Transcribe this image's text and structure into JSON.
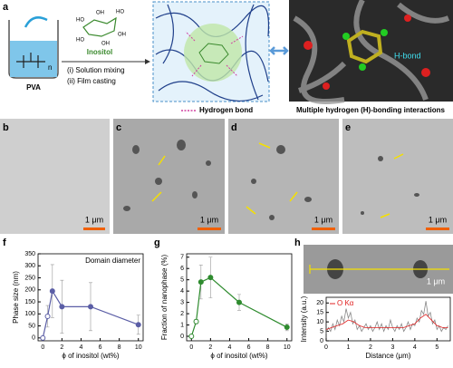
{
  "panel_labels": [
    "a",
    "b",
    "c",
    "d",
    "e",
    "f",
    "g",
    "h"
  ],
  "scheme": {
    "polymer": "PVA",
    "repeat": "n",
    "additive": "Inositol",
    "step1": "(i) Solution mixing",
    "step2": "(ii) Film casting",
    "legend": "Hydrogen bond",
    "hbond": "H-bond",
    "caption": "Multiple hydrogen (H)-bonding interactions",
    "groups": [
      "HO",
      "OH",
      "HO",
      "OH",
      "HO",
      "OH"
    ]
  },
  "scale_bars": [
    "1 μm",
    "1 μm",
    "1 μm",
    "1 μm",
    "1 μm"
  ],
  "chart_data": [
    {
      "type": "line",
      "ylabel": "Phase size (nm)",
      "xlabel": "ϕ of inositol (wt%)",
      "annotation": "Domain diameter",
      "x": [
        0,
        0.5,
        1,
        2,
        5,
        10
      ],
      "series": [
        {
          "color": "#5b5ea6",
          "values": [
            0,
            90,
            195,
            130,
            130,
            55
          ],
          "errors": [
            0,
            45,
            110,
            110,
            100,
            40
          ],
          "filled": [
            false,
            false,
            true,
            true,
            true,
            true
          ]
        }
      ],
      "xlim": [
        -0.5,
        10.5
      ],
      "xticks": [
        0,
        2,
        4,
        6,
        8,
        10
      ],
      "ylim": [
        -12,
        350
      ],
      "yticks": [
        0,
        50,
        100,
        150,
        200,
        250,
        300,
        350
      ]
    },
    {
      "type": "line",
      "ylabel": "Fraction of nanophase (%)",
      "xlabel": "ϕ of inositol (wt%)",
      "x": [
        0,
        0.5,
        1,
        2,
        5,
        10
      ],
      "series": [
        {
          "color": "#2e8b2e",
          "values": [
            0,
            1.3,
            4.8,
            5.2,
            3.0,
            0.8
          ],
          "errors": [
            0,
            0.2,
            1.5,
            1.8,
            0.7,
            0.3
          ],
          "filled": [
            false,
            false,
            true,
            true,
            true,
            true
          ]
        }
      ],
      "xlim": [
        -0.5,
        10.5
      ],
      "xticks": [
        0,
        2,
        4,
        6,
        8,
        10
      ],
      "ylim": [
        -0.4,
        7.3
      ],
      "yticks": [
        0,
        1,
        2,
        3,
        4,
        5,
        6,
        7
      ]
    },
    {
      "type": "line",
      "ylabel": "Intensity (a.u.)",
      "xlabel": "Distance (μm)",
      "series": [
        {
          "color": "#888888",
          "x": [
            0,
            0.1,
            0.2,
            0.3,
            0.4,
            0.5,
            0.6,
            0.7,
            0.8,
            0.9,
            1.0,
            1.1,
            1.2,
            1.3,
            1.4,
            1.5,
            1.6,
            1.7,
            1.8,
            1.9,
            2.0,
            2.1,
            2.2,
            2.3,
            2.4,
            2.5,
            2.6,
            2.7,
            2.8,
            2.9,
            3.0,
            3.1,
            3.2,
            3.3,
            3.4,
            3.5,
            3.6,
            3.7,
            3.8,
            3.9,
            4.0,
            4.1,
            4.2,
            4.3,
            4.4,
            4.5,
            4.6,
            4.7,
            4.8,
            4.9,
            5.0,
            5.1,
            5.2,
            5.3,
            5.4,
            5.5
          ],
          "values": [
            4,
            7,
            5,
            9,
            6,
            11,
            8,
            13,
            10,
            17,
            12,
            15,
            9,
            11,
            6,
            8,
            5,
            7,
            9,
            6,
            8,
            5,
            7,
            10,
            6,
            9,
            5,
            8,
            6,
            11,
            7,
            5,
            8,
            6,
            9,
            5,
            7,
            10,
            6,
            9,
            8,
            12,
            10,
            16,
            14,
            21,
            13,
            15,
            9,
            11,
            6,
            8,
            5,
            7,
            6,
            8
          ]
        },
        {
          "name": "O Kα",
          "color": "#e02020",
          "x": [
            0,
            0.25,
            0.5,
            0.75,
            1,
            1.25,
            1.5,
            1.75,
            2,
            2.25,
            2.5,
            2.75,
            3,
            3.25,
            3.5,
            3.75,
            4,
            4.25,
            4.5,
            4.75,
            5,
            5.25,
            5.5
          ],
          "values": [
            6,
            7,
            8,
            9,
            11,
            10,
            8,
            7,
            7,
            7,
            7,
            7,
            7,
            7,
            7,
            8,
            9,
            12,
            14,
            11,
            8,
            7,
            7
          ]
        }
      ],
      "xlim": [
        0,
        5.6
      ],
      "xticks": [
        0,
        1,
        2,
        3,
        4,
        5
      ],
      "ylim": [
        0,
        23
      ],
      "yticks": [
        0,
        5,
        10,
        15,
        20
      ]
    }
  ]
}
